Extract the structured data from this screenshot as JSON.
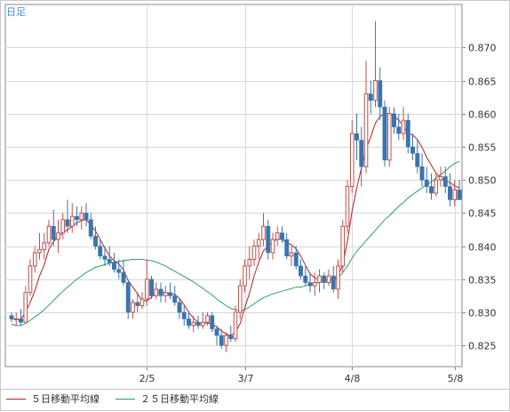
{
  "period_label": "日足",
  "colors": {
    "up": "#c0504d",
    "down": "#3b74ad",
    "ma5": "#b22222",
    "ma25": "#2e9e5e",
    "grid": "#d8d8d8",
    "axis": "#888888",
    "text": "#333333"
  },
  "chart_data": {
    "type": "candlestick",
    "y_ticks": [
      "0.825",
      "0.830",
      "0.835",
      "0.840",
      "0.845",
      "0.850",
      "0.855",
      "0.860",
      "0.865",
      "0.870"
    ],
    "ylim": [
      0.8218,
      0.8765
    ],
    "x_ticks": [
      {
        "label": "2/5",
        "index": 29
      },
      {
        "label": "3/7",
        "index": 50
      },
      {
        "label": "4/8",
        "index": 73
      },
      {
        "label": "5/8",
        "index": 95
      }
    ],
    "grid": true,
    "legend_position": "bottom-left",
    "series": [
      {
        "name": "５日移動平均線",
        "key": "ma5"
      },
      {
        "name": "２５日移動平均線",
        "key": "ma25"
      }
    ],
    "candles": [
      [
        0.8295,
        0.83,
        0.8285,
        0.829
      ],
      [
        0.829,
        0.83,
        0.828,
        0.829
      ],
      [
        0.829,
        0.8305,
        0.828,
        0.8285
      ],
      [
        0.8285,
        0.834,
        0.8285,
        0.833
      ],
      [
        0.833,
        0.838,
        0.8325,
        0.837
      ],
      [
        0.837,
        0.84,
        0.836,
        0.839
      ],
      [
        0.839,
        0.842,
        0.838,
        0.8395
      ],
      [
        0.8395,
        0.842,
        0.838,
        0.8405
      ],
      [
        0.8405,
        0.844,
        0.84,
        0.843
      ],
      [
        0.843,
        0.8455,
        0.84,
        0.841
      ],
      [
        0.841,
        0.844,
        0.839,
        0.842
      ],
      [
        0.842,
        0.845,
        0.841,
        0.844
      ],
      [
        0.844,
        0.847,
        0.842,
        0.843
      ],
      [
        0.843,
        0.8465,
        0.842,
        0.8445
      ],
      [
        0.8445,
        0.846,
        0.843,
        0.844
      ],
      [
        0.844,
        0.846,
        0.8425,
        0.845
      ],
      [
        0.845,
        0.8465,
        0.843,
        0.844
      ],
      [
        0.844,
        0.845,
        0.841,
        0.8415
      ],
      [
        0.8415,
        0.843,
        0.8395,
        0.84
      ],
      [
        0.84,
        0.841,
        0.838,
        0.8385
      ],
      [
        0.8385,
        0.84,
        0.837,
        0.838
      ],
      [
        0.838,
        0.84,
        0.837,
        0.8375
      ],
      [
        0.8375,
        0.839,
        0.836,
        0.8365
      ],
      [
        0.8365,
        0.838,
        0.835,
        0.836
      ],
      [
        0.836,
        0.838,
        0.834,
        0.8345
      ],
      [
        0.8345,
        0.835,
        0.829,
        0.83
      ],
      [
        0.83,
        0.832,
        0.829,
        0.8315
      ],
      [
        0.8315,
        0.833,
        0.83,
        0.831
      ],
      [
        0.831,
        0.833,
        0.8305,
        0.832
      ],
      [
        0.832,
        0.838,
        0.831,
        0.835
      ],
      [
        0.835,
        0.8355,
        0.832,
        0.8325
      ],
      [
        0.8325,
        0.8345,
        0.832,
        0.8335
      ],
      [
        0.8335,
        0.8345,
        0.8315,
        0.8325
      ],
      [
        0.8325,
        0.834,
        0.8315,
        0.833
      ],
      [
        0.833,
        0.8345,
        0.832,
        0.8325
      ],
      [
        0.8325,
        0.834,
        0.831,
        0.8315
      ],
      [
        0.8315,
        0.832,
        0.829,
        0.83
      ],
      [
        0.83,
        0.831,
        0.828,
        0.829
      ],
      [
        0.829,
        0.83,
        0.8275,
        0.828
      ],
      [
        0.828,
        0.8295,
        0.827,
        0.8285
      ],
      [
        0.8285,
        0.8295,
        0.8275,
        0.828
      ],
      [
        0.828,
        0.83,
        0.8275,
        0.8285
      ],
      [
        0.8285,
        0.83,
        0.828,
        0.8295
      ],
      [
        0.8295,
        0.83,
        0.827,
        0.8275
      ],
      [
        0.8275,
        0.828,
        0.825,
        0.8265
      ],
      [
        0.8265,
        0.8275,
        0.8245,
        0.825
      ],
      [
        0.825,
        0.827,
        0.824,
        0.8265
      ],
      [
        0.8265,
        0.828,
        0.8255,
        0.826
      ],
      [
        0.826,
        0.831,
        0.8255,
        0.83
      ],
      [
        0.83,
        0.835,
        0.829,
        0.834
      ],
      [
        0.834,
        0.838,
        0.833,
        0.837
      ],
      [
        0.837,
        0.84,
        0.835,
        0.838
      ],
      [
        0.838,
        0.841,
        0.837,
        0.84
      ],
      [
        0.84,
        0.842,
        0.838,
        0.841
      ],
      [
        0.841,
        0.845,
        0.84,
        0.843
      ],
      [
        0.843,
        0.844,
        0.838,
        0.839
      ],
      [
        0.839,
        0.842,
        0.838,
        0.841
      ],
      [
        0.841,
        0.843,
        0.84,
        0.842
      ],
      [
        0.842,
        0.843,
        0.8405,
        0.841
      ],
      [
        0.841,
        0.842,
        0.838,
        0.8385
      ],
      [
        0.8385,
        0.84,
        0.837,
        0.839
      ],
      [
        0.839,
        0.84,
        0.8365,
        0.837
      ],
      [
        0.837,
        0.838,
        0.835,
        0.8355
      ],
      [
        0.8355,
        0.837,
        0.834,
        0.8345
      ],
      [
        0.8345,
        0.836,
        0.833,
        0.834
      ],
      [
        0.834,
        0.836,
        0.8325,
        0.8345
      ],
      [
        0.8345,
        0.8365,
        0.833,
        0.8355
      ],
      [
        0.8355,
        0.836,
        0.8335,
        0.8345
      ],
      [
        0.8345,
        0.8365,
        0.834,
        0.8355
      ],
      [
        0.8355,
        0.837,
        0.833,
        0.8335
      ],
      [
        0.8335,
        0.838,
        0.832,
        0.837
      ],
      [
        0.837,
        0.844,
        0.836,
        0.843
      ],
      [
        0.843,
        0.85,
        0.842,
        0.849
      ],
      [
        0.849,
        0.859,
        0.848,
        0.857
      ],
      [
        0.857,
        0.86,
        0.853,
        0.856
      ],
      [
        0.856,
        0.858,
        0.849,
        0.852
      ],
      [
        0.852,
        0.868,
        0.851,
        0.863
      ],
      [
        0.863,
        0.865,
        0.86,
        0.862
      ],
      [
        0.862,
        0.874,
        0.861,
        0.865
      ],
      [
        0.865,
        0.867,
        0.859,
        0.861
      ],
      [
        0.861,
        0.862,
        0.852,
        0.853
      ],
      [
        0.853,
        0.861,
        0.852,
        0.86
      ],
      [
        0.86,
        0.861,
        0.857,
        0.858
      ],
      [
        0.858,
        0.86,
        0.856,
        0.857
      ],
      [
        0.857,
        0.861,
        0.856,
        0.859
      ],
      [
        0.859,
        0.86,
        0.854,
        0.855
      ],
      [
        0.855,
        0.857,
        0.853,
        0.854
      ],
      [
        0.854,
        0.856,
        0.851,
        0.852
      ],
      [
        0.852,
        0.854,
        0.849,
        0.85
      ],
      [
        0.85,
        0.852,
        0.848,
        0.849
      ],
      [
        0.849,
        0.851,
        0.847,
        0.848
      ],
      [
        0.848,
        0.851,
        0.8475,
        0.85
      ],
      [
        0.85,
        0.852,
        0.849,
        0.8505
      ],
      [
        0.8505,
        0.852,
        0.848,
        0.849
      ],
      [
        0.849,
        0.851,
        0.846,
        0.847
      ],
      [
        0.847,
        0.85,
        0.846,
        0.8485
      ],
      [
        0.8485,
        0.85,
        0.847,
        0.847
      ]
    ],
    "ma5": [
      0.829,
      0.829,
      0.8289,
      0.8301,
      0.8315,
      0.8333,
      0.8355,
      0.8372,
      0.8395,
      0.8407,
      0.8415,
      0.842,
      0.8425,
      0.843,
      0.8435,
      0.8439,
      0.844,
      0.8432,
      0.8423,
      0.841,
      0.8397,
      0.8385,
      0.8378,
      0.8373,
      0.8364,
      0.8348,
      0.8338,
      0.8328,
      0.8318,
      0.8317,
      0.8323,
      0.833,
      0.8331,
      0.833,
      0.8328,
      0.8327,
      0.8321,
      0.8311,
      0.83,
      0.8291,
      0.8285,
      0.8283,
      0.8284,
      0.8282,
      0.8278,
      0.8272,
      0.8267,
      0.8265,
      0.827,
      0.8283,
      0.8307,
      0.8329,
      0.8355,
      0.8376,
      0.8393,
      0.84,
      0.8406,
      0.8411,
      0.841,
      0.8405,
      0.8402,
      0.8396,
      0.8385,
      0.8371,
      0.8358,
      0.8352,
      0.835,
      0.8348,
      0.835,
      0.835,
      0.8355,
      0.8372,
      0.8407,
      0.8453,
      0.8488,
      0.8518,
      0.8547,
      0.8565,
      0.8586,
      0.8596,
      0.86,
      0.86,
      0.8596,
      0.859,
      0.8582,
      0.857,
      0.8568,
      0.8561,
      0.8549,
      0.8534,
      0.8522,
      0.851,
      0.8503,
      0.8498,
      0.8496,
      0.8491,
      0.8488
    ],
    "ma25": [
      0.8282,
      0.828,
      0.828,
      0.8283,
      0.8288,
      0.8293,
      0.8298,
      0.8304,
      0.8311,
      0.8318,
      0.8325,
      0.8332,
      0.8338,
      0.8344,
      0.835,
      0.8355,
      0.836,
      0.8364,
      0.8368,
      0.837,
      0.8372,
      0.8374,
      0.8376,
      0.8377,
      0.8378,
      0.8379,
      0.838,
      0.838,
      0.838,
      0.8379,
      0.8378,
      0.8376,
      0.8373,
      0.837,
      0.8366,
      0.8362,
      0.8358,
      0.8354,
      0.835,
      0.8346,
      0.8341,
      0.8336,
      0.8331,
      0.8326,
      0.832,
      0.8315,
      0.831,
      0.8306,
      0.8304,
      0.8302,
      0.8304,
      0.8308,
      0.8313,
      0.8318,
      0.8322,
      0.8325,
      0.8328,
      0.833,
      0.8332,
      0.8334,
      0.8336,
      0.8338,
      0.8338,
      0.834,
      0.8342,
      0.8344,
      0.8345,
      0.8346,
      0.8347,
      0.8348,
      0.8352,
      0.836,
      0.837,
      0.8382,
      0.8392,
      0.84,
      0.8408,
      0.8416,
      0.8424,
      0.8432,
      0.844,
      0.8446,
      0.8453,
      0.846,
      0.8466,
      0.8473,
      0.8478,
      0.8483,
      0.8488,
      0.8492,
      0.8497,
      0.8503,
      0.8508,
      0.8513,
      0.852,
      0.8525,
      0.8528
    ]
  }
}
